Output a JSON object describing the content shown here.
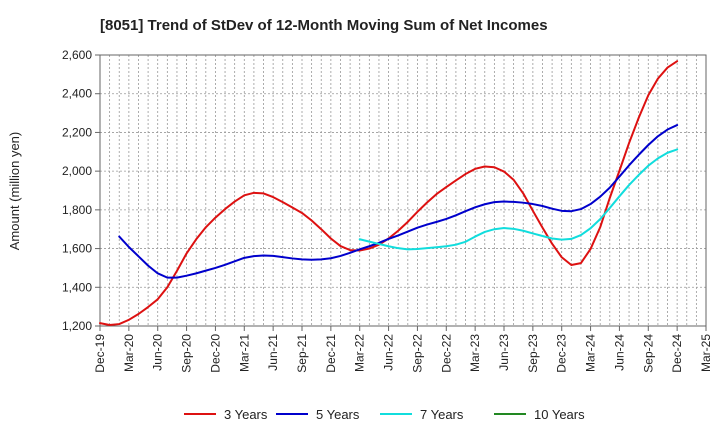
{
  "chart_data": {
    "type": "line",
    "title": "[8051]  Trend of StDev of 12-Month Moving Sum of Net Incomes",
    "ylabel": "Amount (million yen)",
    "xlabel": "",
    "ylim": [
      1200,
      2600
    ],
    "yticks": [
      1200,
      1400,
      1600,
      1800,
      2000,
      2200,
      2400,
      2600
    ],
    "ytick_labels": [
      "1,200",
      "1,400",
      "1,600",
      "1,800",
      "2,000",
      "2,200",
      "2,400",
      "2,600"
    ],
    "xticks": [
      "Dec-19",
      "Mar-20",
      "Jun-20",
      "Sep-20",
      "Dec-20",
      "Mar-21",
      "Jun-21",
      "Sep-21",
      "Dec-21",
      "Mar-22",
      "Jun-22",
      "Sep-22",
      "Dec-22",
      "Mar-23",
      "Jun-23",
      "Sep-23",
      "Dec-23",
      "Mar-24",
      "Jun-24",
      "Sep-24",
      "Dec-24",
      "Mar-25"
    ],
    "grid": true,
    "legend_position": "bottom",
    "series": [
      {
        "name": "3 Years",
        "color": "#dd1111",
        "points": [
          [
            "Dec-19",
            1215
          ],
          [
            "Jan-20",
            1205
          ],
          [
            "Feb-20",
            1210
          ],
          [
            "Mar-20",
            1232
          ],
          [
            "Apr-20",
            1262
          ],
          [
            "May-20",
            1298
          ],
          [
            "Jun-20",
            1338
          ],
          [
            "Jul-20",
            1400
          ],
          [
            "Aug-20",
            1485
          ],
          [
            "Sep-20",
            1575
          ],
          [
            "Oct-20",
            1648
          ],
          [
            "Nov-20",
            1710
          ],
          [
            "Dec-20",
            1760
          ],
          [
            "Jan-21",
            1804
          ],
          [
            "Feb-21",
            1843
          ],
          [
            "Mar-21",
            1875
          ],
          [
            "Apr-21",
            1888
          ],
          [
            "May-21",
            1885
          ],
          [
            "Jun-21",
            1866
          ],
          [
            "Jul-21",
            1840
          ],
          [
            "Aug-21",
            1812
          ],
          [
            "Sep-21",
            1784
          ],
          [
            "Oct-21",
            1745
          ],
          [
            "Nov-21",
            1700
          ],
          [
            "Dec-21",
            1652
          ],
          [
            "Jan-22",
            1613
          ],
          [
            "Feb-22",
            1592
          ],
          [
            "Mar-22",
            1590
          ],
          [
            "Apr-22",
            1600
          ],
          [
            "May-22",
            1620
          ],
          [
            "Jun-22",
            1652
          ],
          [
            "Jul-22",
            1692
          ],
          [
            "Aug-22",
            1738
          ],
          [
            "Sep-22",
            1790
          ],
          [
            "Oct-22",
            1838
          ],
          [
            "Nov-22",
            1882
          ],
          [
            "Dec-22",
            1918
          ],
          [
            "Jan-23",
            1952
          ],
          [
            "Feb-23",
            1985
          ],
          [
            "Mar-23",
            2012
          ],
          [
            "Apr-23",
            2024
          ],
          [
            "May-23",
            2020
          ],
          [
            "Jun-23",
            1998
          ],
          [
            "Jul-23",
            1955
          ],
          [
            "Aug-23",
            1885
          ],
          [
            "Sep-23",
            1795
          ],
          [
            "Oct-23",
            1708
          ],
          [
            "Nov-23",
            1625
          ],
          [
            "Dec-23",
            1555
          ],
          [
            "Jan-24",
            1515
          ],
          [
            "Feb-24",
            1525
          ],
          [
            "Mar-24",
            1598
          ],
          [
            "Apr-24",
            1710
          ],
          [
            "May-24",
            1862
          ],
          [
            "Jun-24",
            2002
          ],
          [
            "Jul-24",
            2145
          ],
          [
            "Aug-24",
            2275
          ],
          [
            "Sep-24",
            2392
          ],
          [
            "Oct-24",
            2478
          ],
          [
            "Nov-24",
            2535
          ],
          [
            "Dec-24",
            2568
          ]
        ]
      },
      {
        "name": "5 Years",
        "color": "#0000cc",
        "points": [
          [
            "Feb-20",
            1662
          ],
          [
            "Mar-20",
            1608
          ],
          [
            "Apr-20",
            1560
          ],
          [
            "May-20",
            1512
          ],
          [
            "Jun-20",
            1472
          ],
          [
            "Jul-20",
            1450
          ],
          [
            "Aug-20",
            1450
          ],
          [
            "Sep-20",
            1460
          ],
          [
            "Oct-20",
            1472
          ],
          [
            "Nov-20",
            1486
          ],
          [
            "Dec-20",
            1500
          ],
          [
            "Jan-21",
            1516
          ],
          [
            "Feb-21",
            1534
          ],
          [
            "Mar-21",
            1552
          ],
          [
            "Apr-21",
            1561
          ],
          [
            "May-21",
            1564
          ],
          [
            "Jun-21",
            1562
          ],
          [
            "Jul-21",
            1556
          ],
          [
            "Aug-21",
            1549
          ],
          [
            "Sep-21",
            1544
          ],
          [
            "Oct-21",
            1542
          ],
          [
            "Nov-21",
            1544
          ],
          [
            "Dec-21",
            1550
          ],
          [
            "Jan-22",
            1562
          ],
          [
            "Feb-22",
            1578
          ],
          [
            "Mar-22",
            1596
          ],
          [
            "Apr-22",
            1612
          ],
          [
            "May-22",
            1630
          ],
          [
            "Jun-22",
            1650
          ],
          [
            "Jul-22",
            1668
          ],
          [
            "Aug-22",
            1688
          ],
          [
            "Sep-22",
            1708
          ],
          [
            "Oct-22",
            1724
          ],
          [
            "Nov-22",
            1738
          ],
          [
            "Dec-22",
            1753
          ],
          [
            "Jan-23",
            1772
          ],
          [
            "Feb-23",
            1793
          ],
          [
            "Mar-23",
            1813
          ],
          [
            "Apr-23",
            1829
          ],
          [
            "May-23",
            1840
          ],
          [
            "Jun-23",
            1843
          ],
          [
            "Jul-23",
            1841
          ],
          [
            "Aug-23",
            1837
          ],
          [
            "Sep-23",
            1830
          ],
          [
            "Oct-23",
            1820
          ],
          [
            "Nov-23",
            1806
          ],
          [
            "Dec-23",
            1795
          ],
          [
            "Jan-24",
            1793
          ],
          [
            "Feb-24",
            1804
          ],
          [
            "Mar-24",
            1830
          ],
          [
            "Apr-24",
            1868
          ],
          [
            "May-24",
            1915
          ],
          [
            "Jun-24",
            1972
          ],
          [
            "Jul-24",
            2030
          ],
          [
            "Aug-24",
            2084
          ],
          [
            "Sep-24",
            2135
          ],
          [
            "Oct-24",
            2180
          ],
          [
            "Nov-24",
            2215
          ],
          [
            "Dec-24",
            2238
          ]
        ]
      },
      {
        "name": "7 Years",
        "color": "#11dddd",
        "points": [
          [
            "Mar-22",
            1648
          ],
          [
            "Apr-22",
            1636
          ],
          [
            "May-22",
            1624
          ],
          [
            "Jun-22",
            1612
          ],
          [
            "Jul-22",
            1602
          ],
          [
            "Aug-22",
            1596
          ],
          [
            "Sep-22",
            1598
          ],
          [
            "Oct-22",
            1602
          ],
          [
            "Nov-22",
            1607
          ],
          [
            "Dec-22",
            1612
          ],
          [
            "Jan-23",
            1620
          ],
          [
            "Feb-23",
            1635
          ],
          [
            "Mar-23",
            1662
          ],
          [
            "Apr-23",
            1686
          ],
          [
            "May-23",
            1700
          ],
          [
            "Jun-23",
            1706
          ],
          [
            "Jul-23",
            1702
          ],
          [
            "Aug-23",
            1692
          ],
          [
            "Sep-23",
            1678
          ],
          [
            "Oct-23",
            1665
          ],
          [
            "Nov-23",
            1652
          ],
          [
            "Dec-23",
            1646
          ],
          [
            "Jan-24",
            1650
          ],
          [
            "Feb-24",
            1670
          ],
          [
            "Mar-24",
            1705
          ],
          [
            "Apr-24",
            1752
          ],
          [
            "May-24",
            1810
          ],
          [
            "Jun-24",
            1870
          ],
          [
            "Jul-24",
            1928
          ],
          [
            "Aug-24",
            1980
          ],
          [
            "Sep-24",
            2028
          ],
          [
            "Oct-24",
            2066
          ],
          [
            "Nov-24",
            2095
          ],
          [
            "Dec-24",
            2112
          ]
        ]
      },
      {
        "name": "10 Years",
        "color": "#228822",
        "points": []
      }
    ]
  }
}
